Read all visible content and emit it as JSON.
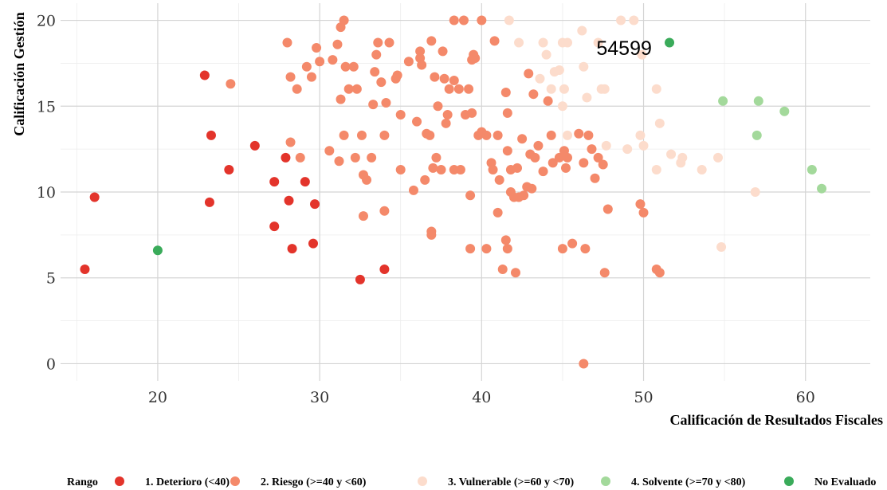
{
  "chart_data": {
    "type": "scatter",
    "xlabel": "Calificación de Resultados Fiscales",
    "ylabel": "Calificación Gestión",
    "xlim": [
      14,
      64
    ],
    "ylim": [
      -1,
      21
    ],
    "x_ticks": [
      20,
      30,
      40,
      50,
      60
    ],
    "y_ticks": [
      0,
      5,
      10,
      15,
      20
    ],
    "grid": true,
    "legend_position": "bottom",
    "legend_title": "Rango",
    "annotation": {
      "text": "54599",
      "x": 48.8,
      "y": 18.4
    },
    "series": [
      {
        "name": "1. Deterioro (<40)",
        "color": "#e3342b",
        "points": [
          [
            15.5,
            5.5
          ],
          [
            16.1,
            9.7
          ],
          [
            22.9,
            16.8
          ],
          [
            23.2,
            9.4
          ],
          [
            23.3,
            13.3
          ],
          [
            24.4,
            11.3
          ],
          [
            26.0,
            12.7
          ],
          [
            27.2,
            10.6
          ],
          [
            27.2,
            8.0
          ],
          [
            27.9,
            12.0
          ],
          [
            28.1,
            9.5
          ],
          [
            28.3,
            6.7
          ],
          [
            29.1,
            10.6
          ],
          [
            29.7,
            9.3
          ],
          [
            29.6,
            7.0
          ],
          [
            32.5,
            4.9
          ],
          [
            34.0,
            5.5
          ]
        ]
      },
      {
        "name": "2. Riesgo (>=40 y <60)",
        "color": "#f4896a",
        "points": [
          [
            24.5,
            16.3
          ],
          [
            28.0,
            18.7
          ],
          [
            28.2,
            16.7
          ],
          [
            28.6,
            16.0
          ],
          [
            28.2,
            12.9
          ],
          [
            28.8,
            12.0
          ],
          [
            29.2,
            17.3
          ],
          [
            29.5,
            16.7
          ],
          [
            29.8,
            18.4
          ],
          [
            30.0,
            17.6
          ],
          [
            30.6,
            12.4
          ],
          [
            30.8,
            17.7
          ],
          [
            31.1,
            18.6
          ],
          [
            31.3,
            19.6
          ],
          [
            31.5,
            20.0
          ],
          [
            31.2,
            11.8
          ],
          [
            31.5,
            13.3
          ],
          [
            31.3,
            15.4
          ],
          [
            31.6,
            17.3
          ],
          [
            31.8,
            16.0
          ],
          [
            32.1,
            17.3
          ],
          [
            32.2,
            12.0
          ],
          [
            32.3,
            16.0
          ],
          [
            32.6,
            13.3
          ],
          [
            32.7,
            11.0
          ],
          [
            32.7,
            8.6
          ],
          [
            32.9,
            10.7
          ],
          [
            33.2,
            12.0
          ],
          [
            33.3,
            15.1
          ],
          [
            33.4,
            17.0
          ],
          [
            33.5,
            18.0
          ],
          [
            33.6,
            18.7
          ],
          [
            33.8,
            16.4
          ],
          [
            34.0,
            13.3
          ],
          [
            34.1,
            15.2
          ],
          [
            34.3,
            18.7
          ],
          [
            34.0,
            8.9
          ],
          [
            34.7,
            16.6
          ],
          [
            34.8,
            16.8
          ],
          [
            35.0,
            11.3
          ],
          [
            35.0,
            14.5
          ],
          [
            35.5,
            17.6
          ],
          [
            35.8,
            10.1
          ],
          [
            36.0,
            14.1
          ],
          [
            36.2,
            17.8
          ],
          [
            36.2,
            18.2
          ],
          [
            36.3,
            17.4
          ],
          [
            36.5,
            10.7
          ],
          [
            36.6,
            13.4
          ],
          [
            36.8,
            13.3
          ],
          [
            36.9,
            18.8
          ],
          [
            37.0,
            11.4
          ],
          [
            37.1,
            16.7
          ],
          [
            37.2,
            12.0
          ],
          [
            37.3,
            15.0
          ],
          [
            37.5,
            11.3
          ],
          [
            37.6,
            18.2
          ],
          [
            37.7,
            16.6
          ],
          [
            37.8,
            14.0
          ],
          [
            37.9,
            14.5
          ],
          [
            38.0,
            16.0
          ],
          [
            38.3,
            11.3
          ],
          [
            38.3,
            20.0
          ],
          [
            38.6,
            16.0
          ],
          [
            38.7,
            11.3
          ],
          [
            38.9,
            20.0
          ],
          [
            39.0,
            14.5
          ],
          [
            39.2,
            16.0
          ],
          [
            39.4,
            14.6
          ],
          [
            39.6,
            17.8
          ],
          [
            39.8,
            13.3
          ],
          [
            40.0,
            13.5
          ],
          [
            40.0,
            20.0
          ],
          [
            40.3,
            13.3
          ],
          [
            40.6,
            11.7
          ],
          [
            40.7,
            11.3
          ],
          [
            40.8,
            18.8
          ],
          [
            41.0,
            13.3
          ],
          [
            41.1,
            10.7
          ],
          [
            41.3,
            5.5
          ],
          [
            41.5,
            15.8
          ],
          [
            41.6,
            12.4
          ],
          [
            41.8,
            10.0
          ],
          [
            42.0,
            9.7
          ],
          [
            42.2,
            11.4
          ],
          [
            42.5,
            13.1
          ],
          [
            42.6,
            9.8
          ],
          [
            42.8,
            10.3
          ],
          [
            43.0,
            12.2
          ],
          [
            43.1,
            10.2
          ],
          [
            43.2,
            15.7
          ],
          [
            43.5,
            12.7
          ],
          [
            43.8,
            11.2
          ],
          [
            44.1,
            15.3
          ],
          [
            44.3,
            13.3
          ],
          [
            44.4,
            11.7
          ],
          [
            44.8,
            12.0
          ],
          [
            45.1,
            12.4
          ],
          [
            45.2,
            11.4
          ],
          [
            45.6,
            7.0
          ],
          [
            46.0,
            13.4
          ],
          [
            46.3,
            11.7
          ],
          [
            46.6,
            13.3
          ],
          [
            46.8,
            12.5
          ],
          [
            47.0,
            10.8
          ],
          [
            47.2,
            12.0
          ],
          [
            47.5,
            11.6
          ],
          [
            47.8,
            9.0
          ],
          [
            49.8,
            9.3
          ],
          [
            50.0,
            8.8
          ],
          [
            50.8,
            5.5
          ],
          [
            51.0,
            5.3
          ],
          [
            46.3,
            0.0
          ],
          [
            39.3,
            9.8
          ],
          [
            39.3,
            6.7
          ],
          [
            36.9,
            7.7
          ],
          [
            36.9,
            7.5
          ],
          [
            41.0,
            8.8
          ],
          [
            41.5,
            7.2
          ],
          [
            41.6,
            6.7
          ],
          [
            42.1,
            5.3
          ],
          [
            45.0,
            6.7
          ],
          [
            46.4,
            6.7
          ],
          [
            47.6,
            5.3
          ],
          [
            40.3,
            6.7
          ],
          [
            39.5,
            18.0
          ],
          [
            38.3,
            16.5
          ],
          [
            41.6,
            14.6
          ],
          [
            42.9,
            16.9
          ],
          [
            45.3,
            12.0
          ],
          [
            43.3,
            12.0
          ],
          [
            41.8,
            11.3
          ],
          [
            42.3,
            9.7
          ],
          [
            39.4,
            17.7
          ]
        ]
      },
      {
        "name": "3. Vulnerable (>=60 y <70)",
        "color": "#fcdccc",
        "points": [
          [
            41.7,
            20.0
          ],
          [
            42.3,
            18.7
          ],
          [
            43.6,
            16.6
          ],
          [
            43.8,
            18.7
          ],
          [
            44.0,
            18.0
          ],
          [
            44.3,
            16.0
          ],
          [
            44.5,
            17.0
          ],
          [
            44.8,
            17.1
          ],
          [
            45.0,
            18.7
          ],
          [
            45.3,
            18.7
          ],
          [
            45.1,
            16.0
          ],
          [
            45.0,
            15.0
          ],
          [
            45.3,
            13.3
          ],
          [
            46.2,
            19.4
          ],
          [
            46.3,
            17.3
          ],
          [
            46.5,
            15.5
          ],
          [
            47.2,
            18.7
          ],
          [
            47.4,
            16.0
          ],
          [
            47.6,
            16.0
          ],
          [
            47.7,
            12.7
          ],
          [
            48.6,
            20.0
          ],
          [
            49.0,
            12.5
          ],
          [
            49.4,
            20.0
          ],
          [
            49.8,
            13.3
          ],
          [
            49.9,
            18.0
          ],
          [
            50.0,
            12.7
          ],
          [
            50.8,
            16.0
          ],
          [
            50.8,
            11.3
          ],
          [
            51.0,
            14.0
          ],
          [
            51.7,
            12.2
          ],
          [
            52.3,
            11.7
          ],
          [
            52.4,
            12.0
          ],
          [
            53.6,
            11.3
          ],
          [
            54.6,
            12.0
          ],
          [
            54.8,
            6.8
          ],
          [
            56.9,
            10.0
          ]
        ]
      },
      {
        "name": "4. Solvente (>=70 y <80)",
        "color": "#a3d99b",
        "points": [
          [
            54.9,
            15.3
          ],
          [
            57.0,
            13.3
          ],
          [
            57.1,
            15.3
          ],
          [
            58.7,
            14.7
          ],
          [
            60.4,
            11.3
          ],
          [
            61.0,
            10.2
          ]
        ]
      },
      {
        "name": "No Evaluado",
        "color": "#3aab5a",
        "points": [
          [
            20.0,
            6.6
          ],
          [
            51.6,
            18.7
          ]
        ]
      }
    ]
  }
}
